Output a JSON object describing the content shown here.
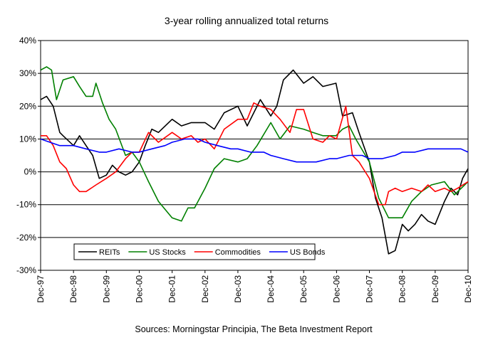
{
  "chart_data": {
    "type": "line",
    "title": "3-year rolling annualized total returns",
    "source": "Sources: Morningstar Principia, The Beta Investment Report",
    "xlabel": "",
    "ylabel": "",
    "x_ticks": [
      "Dec-97",
      "Dec-98",
      "Dec-99",
      "Dec-00",
      "Dec-01",
      "Dec-02",
      "Dec-03",
      "Dec-04",
      "Dec-05",
      "Dec-06",
      "Dec-07",
      "Dec-08",
      "Dec-09",
      "Dec-10"
    ],
    "y_ticks": [
      "40%",
      "30%",
      "20%",
      "10%",
      "0%",
      "-10%",
      "-20%",
      "-30%"
    ],
    "ylim": [
      -30,
      40
    ],
    "xlim": [
      1997.917,
      2010.917
    ],
    "grid": "horizontal",
    "legend_position": "bottom-left",
    "series": [
      {
        "name": "REITs",
        "color": "#000000",
        "x": [
          1997.917,
          1998.1,
          1998.3,
          1998.5,
          1998.6,
          1998.917,
          1999.1,
          1999.3,
          1999.5,
          1999.7,
          1999.917,
          2000.1,
          2000.3,
          2000.5,
          2000.7,
          2000.917,
          2001.1,
          2001.3,
          2001.5,
          2001.917,
          2002.2,
          2002.5,
          2002.917,
          2003.2,
          2003.5,
          2003.917,
          2004.2,
          2004.6,
          2004.917,
          2005.1,
          2005.3,
          2005.6,
          2005.917,
          2006.2,
          2006.5,
          2006.9,
          2007.1,
          2007.4,
          2007.6,
          2007.917,
          2008.1,
          2008.3,
          2008.5,
          2008.7,
          2008.917,
          2009.1,
          2009.3,
          2009.5,
          2009.7,
          2009.917,
          2010.2,
          2010.4,
          2010.6,
          2010.75,
          2010.917
        ],
        "y": [
          22,
          23,
          20,
          12,
          11,
          8,
          11,
          8,
          5,
          -2,
          -1,
          2,
          0,
          -1,
          0,
          3,
          8,
          13,
          12,
          16,
          14,
          15,
          15,
          13,
          18,
          20,
          14,
          22,
          17,
          20,
          28,
          31,
          27,
          29,
          26,
          27,
          17,
          18,
          12,
          3,
          -8,
          -14,
          -25,
          -24,
          -16,
          -18,
          -16,
          -13,
          -15,
          -16,
          -9,
          -5,
          -7,
          -2,
          1
        ]
      },
      {
        "name": "US Stocks",
        "color": "#008000",
        "x": [
          1997.917,
          1998.1,
          1998.25,
          1998.4,
          1998.6,
          1998.917,
          1999.1,
          1999.3,
          1999.5,
          1999.6,
          1999.8,
          2000.0,
          2000.2,
          2000.5,
          2000.7,
          2000.917,
          2001.2,
          2001.5,
          2001.917,
          2002.2,
          2002.4,
          2002.6,
          2002.917,
          2003.2,
          2003.5,
          2003.917,
          2004.2,
          2004.5,
          2004.917,
          2005.2,
          2005.5,
          2005.917,
          2006.2,
          2006.5,
          2006.9,
          2007.1,
          2007.3,
          2007.5,
          2007.917,
          2008.2,
          2008.5,
          2008.917,
          2009.2,
          2009.5,
          2009.8,
          2010.2,
          2010.5,
          2010.917
        ],
        "y": [
          31,
          32,
          31,
          22,
          28,
          29,
          26,
          23,
          23,
          27,
          21,
          16,
          13,
          5,
          6,
          3,
          -3,
          -9,
          -14,
          -15,
          -11,
          -11,
          -5,
          1,
          4,
          3,
          4,
          8,
          15,
          10,
          14,
          13,
          12,
          11,
          11,
          13,
          14,
          10,
          3,
          -8,
          -14,
          -14,
          -9,
          -6,
          -4,
          -3,
          -7,
          -3
        ]
      },
      {
        "name": "Commodities",
        "color": "#ff0000",
        "x": [
          1997.917,
          1998.1,
          1998.3,
          1998.5,
          1998.7,
          1998.917,
          1999.1,
          1999.3,
          1999.6,
          1999.917,
          2000.2,
          2000.5,
          2000.7,
          2000.917,
          2001.2,
          2001.5,
          2001.917,
          2002.2,
          2002.5,
          2002.7,
          2002.917,
          2003.2,
          2003.5,
          2003.917,
          2004.2,
          2004.4,
          2004.6,
          2004.917,
          2005.2,
          2005.5,
          2005.7,
          2005.917,
          2006.2,
          2006.5,
          2006.7,
          2006.917,
          2007.2,
          2007.4,
          2007.6,
          2007.917,
          2008.2,
          2008.4,
          2008.5,
          2008.7,
          2008.917,
          2009.2,
          2009.5,
          2009.7,
          2009.917,
          2010.2,
          2010.4,
          2010.6,
          2010.917
        ],
        "y": [
          11,
          11,
          8,
          3,
          1,
          -4,
          -6,
          -6,
          -4,
          -2,
          0,
          4,
          6,
          6,
          12,
          9,
          12,
          10,
          11,
          9,
          10,
          7,
          13,
          16,
          16,
          21,
          20,
          19,
          16,
          12,
          19,
          19,
          10,
          9,
          11,
          10,
          20,
          5,
          3,
          -2,
          -10,
          -10,
          -6,
          -5,
          -6,
          -5,
          -6,
          -4,
          -6,
          -5,
          -6,
          -5,
          -3
        ]
      },
      {
        "name": "US Bonds",
        "color": "#0000ff",
        "x": [
          1997.917,
          1998.2,
          1998.5,
          1998.917,
          1999.3,
          1999.7,
          1999.917,
          2000.3,
          2000.7,
          2000.917,
          2001.3,
          2001.7,
          2001.917,
          2002.3,
          2002.7,
          2002.917,
          2003.3,
          2003.7,
          2003.917,
          2004.3,
          2004.7,
          2004.917,
          2005.3,
          2005.7,
          2005.917,
          2006.3,
          2006.7,
          2006.917,
          2007.3,
          2007.7,
          2007.917,
          2008.3,
          2008.7,
          2008.917,
          2009.3,
          2009.7,
          2009.917,
          2010.3,
          2010.7,
          2010.917
        ],
        "y": [
          10,
          9,
          8,
          8,
          7,
          6,
          6,
          7,
          6,
          6,
          7,
          8,
          9,
          10,
          10,
          9,
          8,
          7,
          7,
          6,
          6,
          5,
          4,
          3,
          3,
          3,
          4,
          4,
          5,
          5,
          4,
          4,
          5,
          6,
          6,
          7,
          7,
          7,
          7,
          6
        ]
      }
    ]
  }
}
